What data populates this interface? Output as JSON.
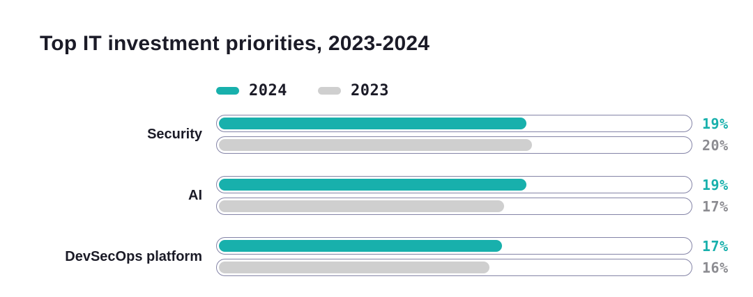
{
  "title": "Top IT investment priorities, 2023-2024",
  "colors": {
    "accent_teal": "#18b0ac",
    "bar_gray": "#cfcfcf",
    "value_gray_text": "#8c8c91",
    "track_border": "#8383a6",
    "text_dark": "#1b1b27",
    "background": "#ffffff"
  },
  "legend": {
    "items": [
      {
        "label": "2024",
        "color": "#18b0ac"
      },
      {
        "label": "2023",
        "color": "#cfcfcf"
      }
    ]
  },
  "chart_data": {
    "type": "bar",
    "orientation": "horizontal",
    "title": "Top IT investment priorities, 2023-2024",
    "categories": [
      "Security",
      "AI",
      "DevSecOps platform"
    ],
    "series": [
      {
        "name": "2024",
        "values": [
          19,
          19,
          17
        ],
        "unit": "%",
        "color": "#18b0ac"
      },
      {
        "name": "2023",
        "values": [
          20,
          17,
          16
        ],
        "unit": "%",
        "color": "#cfcfcf"
      }
    ],
    "legend_position": "top",
    "value_labels_position": "right",
    "grid": false
  },
  "groups": [
    {
      "label": "Security",
      "bars": [
        {
          "series": "2024",
          "value": 19,
          "value_label": "19%",
          "fill": 0.653
        },
        {
          "series": "2023",
          "value": 20,
          "value_label": "20%",
          "fill": 0.665
        }
      ]
    },
    {
      "label": "AI",
      "bars": [
        {
          "series": "2024",
          "value": 19,
          "value_label": "19%",
          "fill": 0.653
        },
        {
          "series": "2023",
          "value": 17,
          "value_label": "17%",
          "fill": 0.606
        }
      ]
    },
    {
      "label": "DevSecOps platform",
      "bars": [
        {
          "series": "2024",
          "value": 17,
          "value_label": "17%",
          "fill": 0.601
        },
        {
          "series": "2023",
          "value": 16,
          "value_label": "16%",
          "fill": 0.575
        }
      ]
    }
  ]
}
